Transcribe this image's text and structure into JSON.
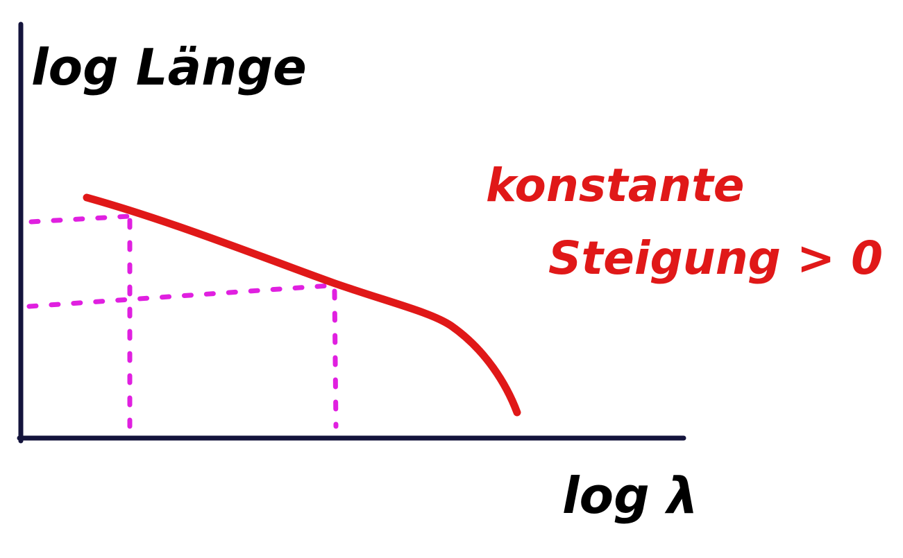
{
  "axes": {
    "y_label": "log Länge",
    "x_label": "log λ"
  },
  "annotation": {
    "lines": [
      "konstante",
      "Steigung > 0"
    ]
  }
}
